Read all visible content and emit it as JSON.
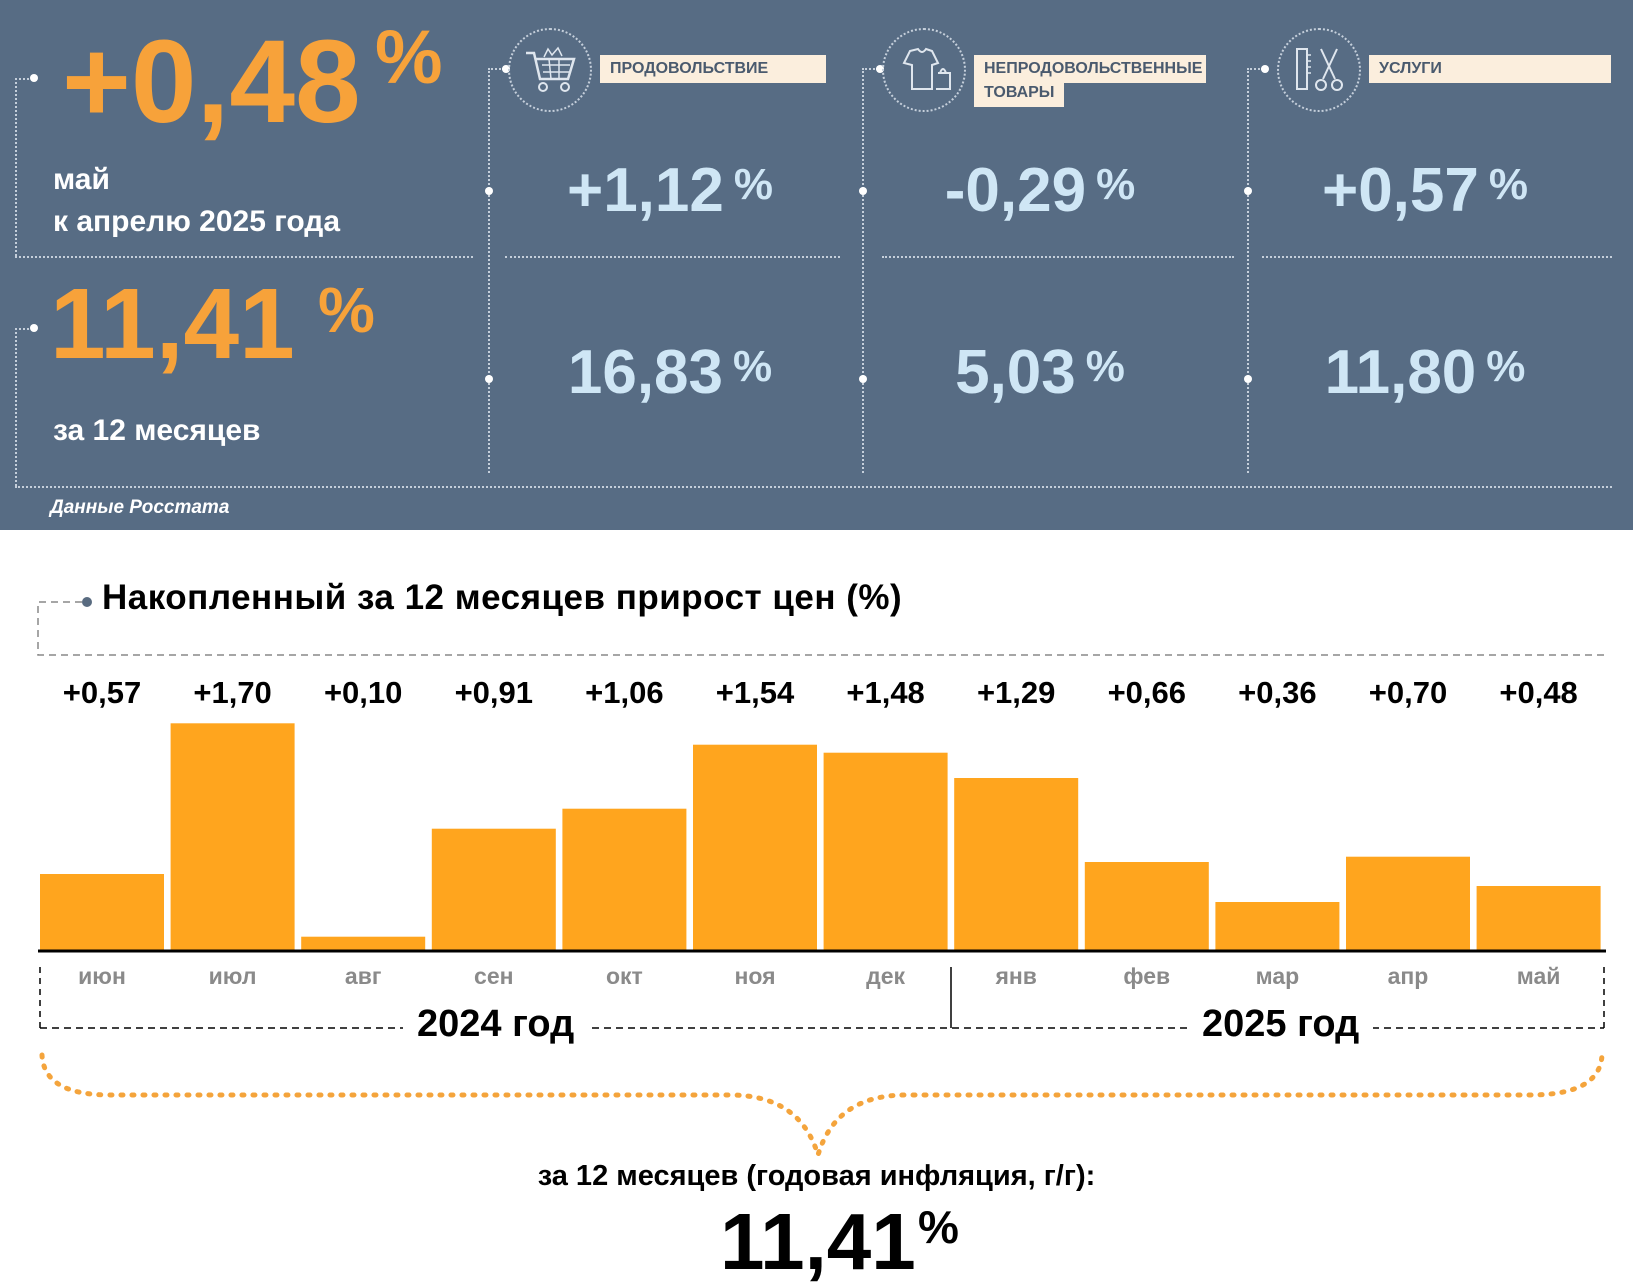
{
  "colors": {
    "panel_bg": "#576c84",
    "accent_orange": "#f7a23a",
    "value_blue": "#cfe6f5",
    "bar": "#ffa51e",
    "label_bg": "#fbeedd"
  },
  "header": {
    "monthly": {
      "value": "+0,48",
      "pct": "%",
      "line1": "май",
      "line2": "к апрелю 2025 года"
    },
    "annual": {
      "value": "11,41",
      "pct": "%",
      "label": "за 12 месяцев"
    },
    "source": "Данные Росстата"
  },
  "categories": [
    {
      "name": "ПРОДОВОЛЬСТВИЕ",
      "icon": "shopping-cart-icon",
      "monthly": "+1,12",
      "annual": "16,83",
      "pct": "%"
    },
    {
      "name_line1": "НЕПРОДОВОЛЬСТВЕННЫЕ",
      "name_line2": "ТОВАРЫ",
      "icon": "clothes-bag-icon",
      "monthly": "-0,29",
      "annual": "5,03",
      "pct": "%"
    },
    {
      "name": "УСЛУГИ",
      "icon": "scissors-comb-icon",
      "monthly": "+0,57",
      "annual": "11,80",
      "pct": "%"
    }
  ],
  "chart_title": "Накопленный за 12 месяцев прирост цен (%)",
  "chart_data": {
    "type": "bar",
    "title": "Накопленный за 12 месяцев прирост цен (%)",
    "categories": [
      "июн",
      "июл",
      "авг",
      "сен",
      "окт",
      "ноя",
      "дек",
      "янв",
      "фев",
      "мар",
      "апр",
      "май"
    ],
    "values": [
      0.57,
      1.7,
      0.1,
      0.91,
      1.06,
      1.54,
      1.48,
      1.29,
      0.66,
      0.36,
      0.7,
      0.48
    ],
    "value_labels": [
      "+0,57",
      "+1,70",
      "+0,10",
      "+0,91",
      "+1,06",
      "+1,54",
      "+1,48",
      "+1,29",
      "+0,66",
      "+0,36",
      "+0,70",
      "+0,48"
    ],
    "year_groups": [
      {
        "label": "2024 год",
        "months": [
          "июн",
          "июл",
          "авг",
          "сен",
          "окт",
          "ноя",
          "дек"
        ]
      },
      {
        "label": "2025 год",
        "months": [
          "янв",
          "фев",
          "мар",
          "апр",
          "май"
        ]
      }
    ],
    "ylim": [
      0,
      1.8
    ],
    "grid": false,
    "legend": "none"
  },
  "footer": {
    "label": "за 12 месяцев (годовая инфляция, г/г):",
    "value": "11,41",
    "pct": "%"
  }
}
